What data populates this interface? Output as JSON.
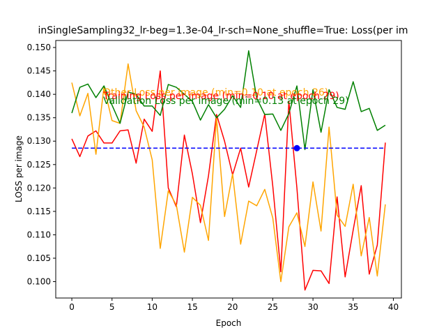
{
  "chart_data": {
    "type": "line",
    "title": "inSingleSampling32_lr-beg=1.3e-04_lr-sch=None_shuffle=True:  Loss(per im",
    "xlabel": "Epoch",
    "ylabel": "LOSS per image",
    "xlim": [
      -2,
      41
    ],
    "ylim": [
      0.0965,
      0.1515
    ],
    "xticks": [
      0,
      5,
      10,
      15,
      20,
      25,
      30,
      35,
      40
    ],
    "yticks": [
      0.1,
      0.105,
      0.11,
      0.115,
      0.12,
      0.125,
      0.13,
      0.135,
      0.14,
      0.145,
      0.15
    ],
    "ytick_labels": [
      "0.100",
      "0.105",
      "0.110",
      "0.115",
      "0.120",
      "0.125",
      "0.130",
      "0.135",
      "0.140",
      "0.145",
      "0.150"
    ],
    "grid": false,
    "x": [
      0,
      1,
      2,
      3,
      4,
      5,
      6,
      7,
      8,
      9,
      10,
      11,
      12,
      13,
      14,
      15,
      16,
      17,
      18,
      19,
      20,
      21,
      22,
      23,
      24,
      25,
      26,
      27,
      28,
      29,
      30,
      31,
      32,
      33,
      34,
      35,
      36,
      37,
      38,
      39
    ],
    "series": [
      {
        "color": "#ff0000",
        "values": [
          0.1305,
          0.1267,
          0.1311,
          0.1322,
          0.1296,
          0.1296,
          0.1322,
          0.1324,
          0.1253,
          0.1347,
          0.1321,
          0.145,
          0.12,
          0.116,
          0.1313,
          0.123,
          0.1126,
          0.1226,
          0.1357,
          0.13,
          0.1228,
          0.1285,
          0.1202,
          0.128,
          0.1358,
          0.1204,
          0.1021,
          0.1385,
          0.12,
          0.0982,
          0.1024,
          0.1023,
          0.0996,
          0.1181,
          0.101,
          0.111,
          0.1205,
          0.1016,
          0.1078,
          0.1297
        ]
      },
      {
        "color": "#ffa500",
        "values": [
          0.1425,
          0.1354,
          0.1402,
          0.1272,
          0.1416,
          0.1344,
          0.1338,
          0.1465,
          0.1365,
          0.133,
          0.126,
          0.1071,
          0.1194,
          0.1164,
          0.1063,
          0.118,
          0.1163,
          0.1088,
          0.135,
          0.1139,
          0.123,
          0.108,
          0.1172,
          0.1162,
          0.1197,
          0.1136,
          0.1,
          0.1117,
          0.1147,
          0.1075,
          0.1213,
          0.1108,
          0.133,
          0.1142,
          0.1118,
          0.1208,
          0.1055,
          0.1137,
          0.1012,
          0.1165
        ]
      },
      {
        "color": "#008000",
        "values": [
          0.136,
          0.1415,
          0.1422,
          0.1393,
          0.1418,
          0.1377,
          0.1338,
          0.1405,
          0.14,
          0.1375,
          0.1375,
          0.1355,
          0.1421,
          0.1415,
          0.14,
          0.1385,
          0.1345,
          0.1378,
          0.135,
          0.1368,
          0.1397,
          0.1372,
          0.1493,
          0.1392,
          0.1357,
          0.1358,
          0.1323,
          0.1359,
          0.1418,
          0.1282,
          0.141,
          0.1319,
          0.141,
          0.1372,
          0.1368,
          0.1427,
          0.1363,
          0.137,
          0.1323,
          0.1334
        ]
      }
    ],
    "hline": {
      "y": 0.1285,
      "color": "#0000ff"
    },
    "marker": {
      "x": 28,
      "y": 0.1285,
      "color": "#0000ff"
    },
    "annotations": [
      {
        "text": "Other Loss per image (min=0.10 at epoch 26)",
        "color": "#ffa500"
      },
      {
        "text": "Training Loss per image (min=0.10 at epoch 29)",
        "color": "#ff0000"
      },
      {
        "text": "Validation Loss per image (min=0.13 at epoch 29)",
        "color": "#008000"
      }
    ]
  }
}
